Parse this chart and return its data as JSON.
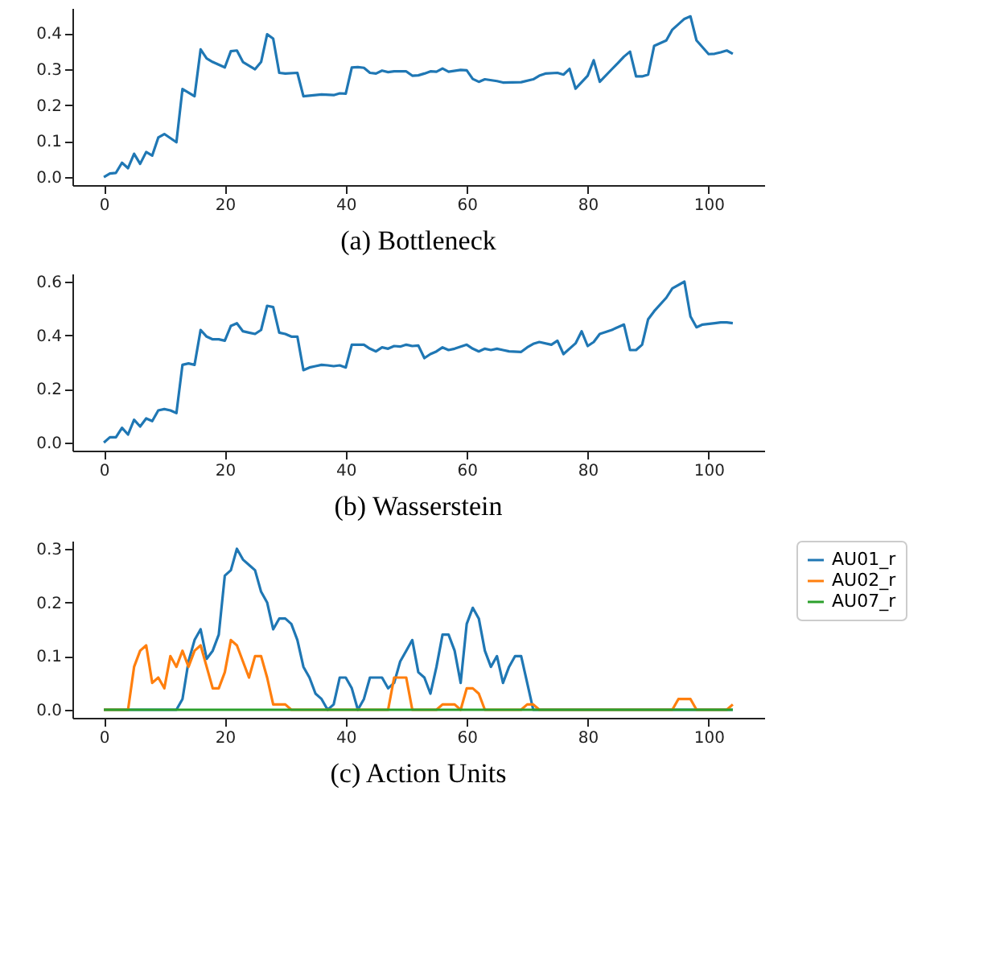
{
  "chart_data": [
    {
      "type": "line",
      "title": "(a)  Bottleneck",
      "xlim": [
        -5.2,
        109.2
      ],
      "xticks": [
        0,
        20,
        40,
        60,
        80,
        100
      ],
      "ylim": [
        -0.022,
        0.47
      ],
      "yticks": [
        {
          "value": 0,
          "label": "0.0"
        },
        0.1,
        0.2,
        0.3,
        0.4
      ],
      "grid": false,
      "legend": false,
      "series": [
        {
          "color": "#1f77b4",
          "x": [
            0,
            1,
            2,
            3,
            4,
            5,
            6,
            7,
            8,
            9,
            10,
            12,
            13,
            15,
            16,
            17,
            18,
            20,
            21,
            22,
            23,
            25,
            26,
            27,
            28,
            29,
            30,
            32,
            33,
            36,
            38,
            39,
            40,
            41,
            42,
            43,
            44,
            45,
            46,
            47,
            48,
            50,
            51,
            52,
            53,
            54,
            55,
            56,
            57,
            59,
            60,
            61,
            62,
            63,
            65,
            66,
            69,
            71,
            72,
            73,
            75,
            76,
            77,
            78,
            80,
            81,
            82,
            84,
            85,
            86,
            87,
            88,
            89,
            90,
            91,
            93,
            94,
            95,
            96,
            97,
            98,
            100,
            101,
            102,
            103,
            104
          ],
          "values": [
            0,
            0.01,
            0.012,
            0.04,
            0.025,
            0.065,
            0.037,
            0.07,
            0.06,
            0.11,
            0.12,
            0.097,
            0.245,
            0.225,
            0.355,
            0.33,
            0.32,
            0.305,
            0.35,
            0.352,
            0.32,
            0.3,
            0.32,
            0.397,
            0.385,
            0.29,
            0.288,
            0.29,
            0.225,
            0.23,
            0.228,
            0.233,
            0.232,
            0.305,
            0.306,
            0.304,
            0.29,
            0.288,
            0.296,
            0.292,
            0.294,
            0.294,
            0.282,
            0.283,
            0.288,
            0.294,
            0.293,
            0.302,
            0.293,
            0.298,
            0.297,
            0.273,
            0.265,
            0.272,
            0.267,
            0.263,
            0.264,
            0.272,
            0.282,
            0.288,
            0.29,
            0.285,
            0.301,
            0.246,
            0.282,
            0.325,
            0.265,
            0.3,
            0.317,
            0.335,
            0.349,
            0.28,
            0.28,
            0.285,
            0.365,
            0.38,
            0.41,
            0.425,
            0.44,
            0.447,
            0.38,
            0.342,
            0.343,
            0.347,
            0.352,
            0.343
          ]
        }
      ]
    },
    {
      "type": "line",
      "title": "(b)  Wasserstein",
      "xlim": [
        -5.2,
        109.2
      ],
      "xticks": [
        0,
        20,
        40,
        60,
        80,
        100
      ],
      "ylim": [
        -0.03,
        0.63
      ],
      "yticks": [
        {
          "value": 0,
          "label": "0.0"
        },
        0.2,
        0.4,
        0.6
      ],
      "grid": false,
      "legend": false,
      "series": [
        {
          "color": "#1f77b4",
          "x": [
            0,
            1,
            2,
            3,
            4,
            5,
            6,
            7,
            8,
            9,
            10,
            11,
            12,
            13,
            14,
            15,
            16,
            17,
            18,
            19,
            20,
            21,
            22,
            23,
            24,
            25,
            26,
            27,
            28,
            29,
            30,
            31,
            32,
            33,
            34,
            35,
            36,
            37,
            38,
            39,
            40,
            41,
            42,
            43,
            44,
            45,
            46,
            47,
            48,
            49,
            50,
            51,
            52,
            53,
            54,
            55,
            56,
            57,
            58,
            60,
            61,
            62,
            63,
            64,
            65,
            66,
            67,
            69,
            70,
            71,
            72,
            74,
            75,
            76,
            78,
            79,
            80,
            81,
            82,
            84,
            86,
            87,
            88,
            89,
            90,
            91,
            93,
            94,
            96,
            97,
            98,
            99,
            101,
            102,
            103,
            104
          ],
          "values": [
            0,
            0.02,
            0.02,
            0.055,
            0.03,
            0.085,
            0.06,
            0.09,
            0.08,
            0.12,
            0.125,
            0.12,
            0.11,
            0.29,
            0.295,
            0.29,
            0.42,
            0.395,
            0.385,
            0.385,
            0.38,
            0.435,
            0.445,
            0.415,
            0.41,
            0.405,
            0.42,
            0.51,
            0.505,
            0.41,
            0.405,
            0.395,
            0.395,
            0.27,
            0.28,
            0.285,
            0.29,
            0.288,
            0.285,
            0.288,
            0.28,
            0.365,
            0.365,
            0.365,
            0.35,
            0.34,
            0.355,
            0.35,
            0.36,
            0.358,
            0.365,
            0.36,
            0.362,
            0.315,
            0.33,
            0.34,
            0.355,
            0.345,
            0.35,
            0.365,
            0.35,
            0.34,
            0.35,
            0.345,
            0.35,
            0.345,
            0.34,
            0.338,
            0.355,
            0.368,
            0.375,
            0.365,
            0.38,
            0.33,
            0.37,
            0.415,
            0.36,
            0.375,
            0.405,
            0.42,
            0.44,
            0.345,
            0.345,
            0.365,
            0.46,
            0.49,
            0.54,
            0.575,
            0.6,
            0.47,
            0.43,
            0.44,
            0.445,
            0.448,
            0.448,
            0.445
          ]
        }
      ]
    },
    {
      "type": "line",
      "title": "(c)  Action Units",
      "xlim": [
        -5.2,
        109.2
      ],
      "xticks": [
        0,
        20,
        40,
        60,
        80,
        100
      ],
      "ylim": [
        -0.015,
        0.315
      ],
      "yticks": [
        {
          "value": 0,
          "label": "0.0"
        },
        0.1,
        0.2,
        0.3
      ],
      "grid": false,
      "legend": "right",
      "series": [
        {
          "name": "AU01_r",
          "color": "#1f77b4",
          "x": [
            0,
            12,
            13,
            14,
            15,
            16,
            17,
            18,
            19,
            20,
            21,
            22,
            23,
            24,
            25,
            26,
            27,
            28,
            29,
            30,
            31,
            32,
            33,
            34,
            35,
            36,
            37,
            38,
            39,
            40,
            41,
            42,
            43,
            44,
            45,
            46,
            47,
            48,
            49,
            50,
            51,
            52,
            53,
            54,
            55,
            56,
            57,
            58,
            59,
            60,
            61,
            62,
            63,
            64,
            65,
            66,
            67,
            68,
            69,
            70,
            71,
            104
          ],
          "values": [
            0,
            0,
            0.02,
            0.09,
            0.13,
            0.15,
            0.095,
            0.11,
            0.14,
            0.25,
            0.26,
            0.3,
            0.28,
            0.27,
            0.26,
            0.22,
            0.2,
            0.15,
            0.17,
            0.17,
            0.16,
            0.13,
            0.08,
            0.06,
            0.03,
            0.02,
            0,
            0.01,
            0.06,
            0.06,
            0.04,
            0,
            0.02,
            0.06,
            0.06,
            0.06,
            0.04,
            0.05,
            0.09,
            0.11,
            0.13,
            0.07,
            0.06,
            0.03,
            0.08,
            0.14,
            0.14,
            0.11,
            0.05,
            0.16,
            0.19,
            0.17,
            0.11,
            0.08,
            0.1,
            0.05,
            0.08,
            0.1,
            0.1,
            0.05,
            0,
            0
          ]
        },
        {
          "name": "AU02_r",
          "color": "#ff7f0e",
          "x": [
            0,
            4,
            5,
            6,
            7,
            8,
            9,
            10,
            11,
            12,
            13,
            14,
            15,
            16,
            17,
            18,
            19,
            20,
            21,
            22,
            23,
            24,
            25,
            26,
            27,
            28,
            29,
            30,
            31,
            47,
            48,
            49,
            50,
            51,
            55,
            56,
            57,
            58,
            59,
            60,
            61,
            62,
            63,
            69,
            70,
            71,
            72,
            94,
            95,
            96,
            97,
            98,
            103,
            104
          ],
          "values": [
            0,
            0,
            0.08,
            0.11,
            0.12,
            0.05,
            0.06,
            0.04,
            0.1,
            0.08,
            0.11,
            0.08,
            0.11,
            0.12,
            0.08,
            0.04,
            0.04,
            0.07,
            0.13,
            0.12,
            0.09,
            0.06,
            0.1,
            0.1,
            0.06,
            0.01,
            0.01,
            0.01,
            0,
            0,
            0.06,
            0.06,
            0.06,
            0,
            0,
            0.01,
            0.01,
            0.01,
            0,
            0.04,
            0.04,
            0.03,
            0,
            0,
            0.01,
            0.01,
            0,
            0,
            0.02,
            0.02,
            0.02,
            0,
            0,
            0.01
          ]
        },
        {
          "name": "AU07_r",
          "color": "#2ca02c",
          "x": [
            0,
            104
          ],
          "values": [
            0,
            0
          ]
        }
      ]
    }
  ]
}
